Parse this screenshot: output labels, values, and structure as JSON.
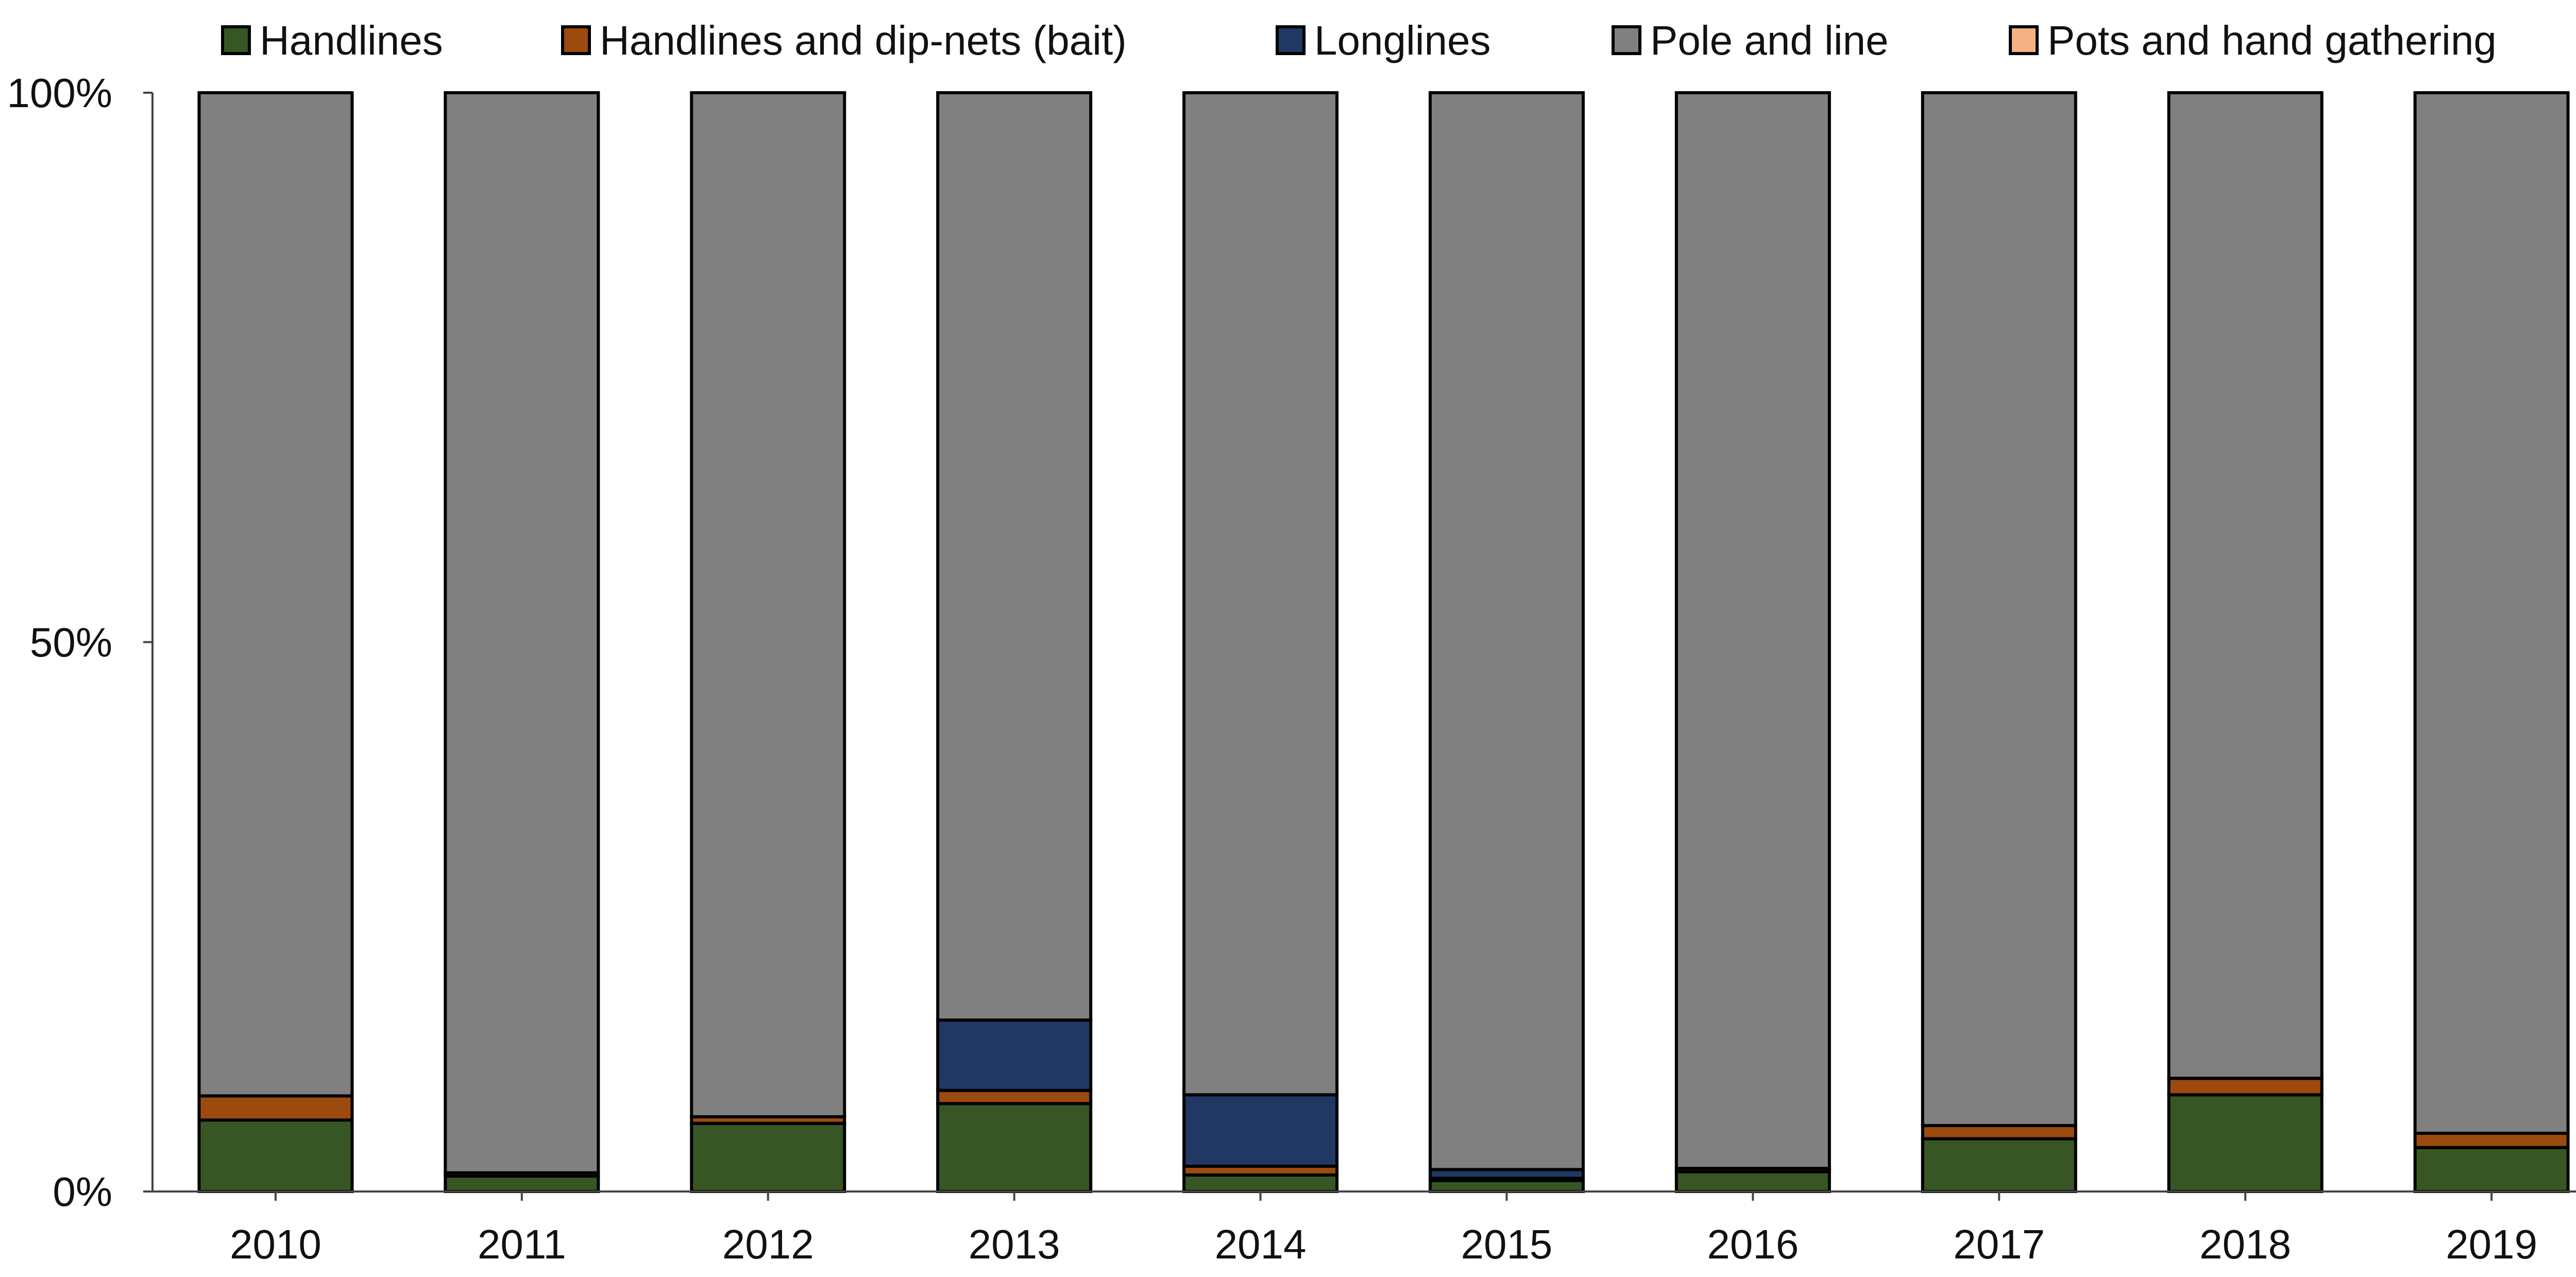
{
  "chart_data": {
    "type": "bar",
    "stacked": true,
    "normalized": true,
    "categories": [
      "2010",
      "2011",
      "2012",
      "2013",
      "2014",
      "2015",
      "2016",
      "2017",
      "2018",
      "2019"
    ],
    "series": [
      {
        "name": "Handlines",
        "color": "#375623",
        "values": [
          6.5,
          1.4,
          6.2,
          8.0,
          1.5,
          1.0,
          1.8,
          4.8,
          8.8,
          4.0
        ]
      },
      {
        "name": "Handlines and dip-nets (bait)",
        "color": "#9C4A0E",
        "values": [
          2.2,
          0.3,
          0.6,
          1.2,
          0.8,
          0.2,
          0.3,
          1.2,
          1.5,
          1.3
        ]
      },
      {
        "name": "Longlines",
        "color": "#203864",
        "values": [
          0.0,
          0.0,
          0.0,
          6.4,
          6.5,
          0.8,
          0.0,
          0.0,
          0.0,
          0.0
        ]
      },
      {
        "name": "Pole and line",
        "color": "#808080",
        "values": [
          91.3,
          98.3,
          93.2,
          84.4,
          91.2,
          98.0,
          97.9,
          94.0,
          89.7,
          94.7
        ]
      },
      {
        "name": "Pots and hand gathering",
        "color": "#F4B183",
        "values": [
          0,
          0,
          0,
          0,
          0,
          0,
          0,
          0,
          0,
          0
        ]
      }
    ],
    "y_ticks": [
      "0%",
      "50%",
      "100%"
    ],
    "ylim": [
      0,
      100
    ],
    "legend_position": "top",
    "grid": false,
    "title": "",
    "xlabel": "",
    "ylabel": ""
  }
}
